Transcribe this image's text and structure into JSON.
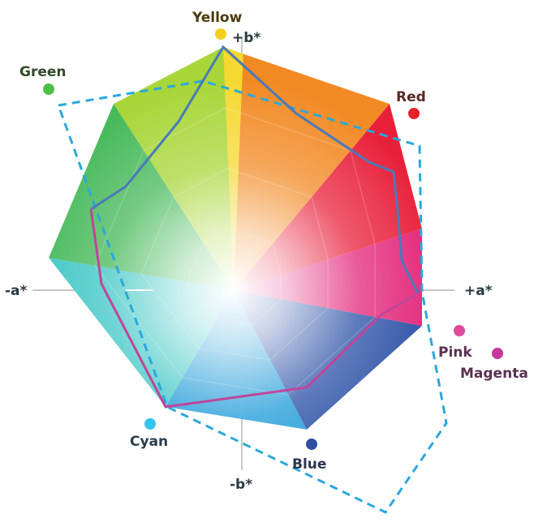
{
  "axes": {
    "pos_b": "+b*",
    "neg_b": "-b*",
    "pos_a": "+a*",
    "neg_a": "-a*"
  },
  "colors": [
    {
      "name": "Yellow",
      "dot": "#f0d21e",
      "text": "#4a3a0a"
    },
    {
      "name": "Green",
      "dot": "#4fbe46",
      "text": "#2f4a2a"
    },
    {
      "name": "Red",
      "dot": "#e8202a",
      "text": "#5a2a24"
    },
    {
      "name": "Pink",
      "dot": "#e0489a",
      "text": "#5a3050"
    },
    {
      "name": "Magenta",
      "dot": "#c4389a",
      "text": "#5a3050"
    },
    {
      "name": "Cyan",
      "dot": "#35c4ee",
      "text": "#2a3c48"
    },
    {
      "name": "Blue",
      "dot": "#2c4fa0",
      "text": "#2a3450"
    }
  ],
  "outlines": {
    "dashed_color": "#2aa8dc",
    "solid_color_top": "#4a7ab8",
    "solid_color_bottom": "#c0449a"
  }
}
